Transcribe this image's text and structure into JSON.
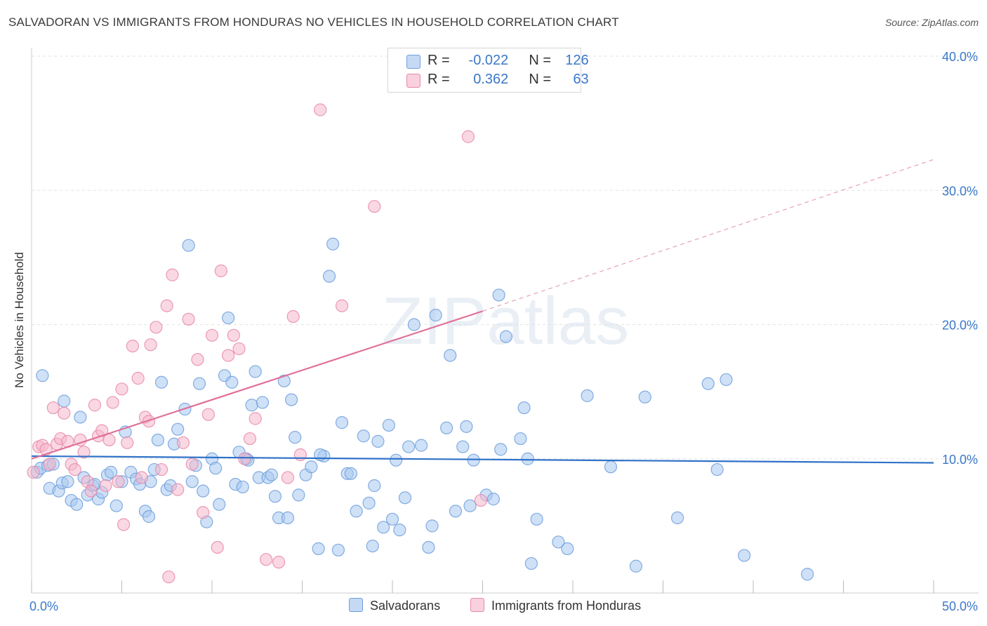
{
  "title": "SALVADORAN VS IMMIGRANTS FROM HONDURAS NO VEHICLES IN HOUSEHOLD CORRELATION CHART",
  "source": "Source: ZipAtlas.com",
  "watermark": "ZIPatlas",
  "legend_stats": [
    {
      "r_label": "R =",
      "r_value": "-0.022",
      "n_label": "N =",
      "n_value": "126",
      "color": "#a8c8f0"
    },
    {
      "r_label": "R =",
      "r_value": "0.362",
      "n_label": "N =",
      "n_value": "63",
      "color": "#f5b8cc"
    }
  ],
  "chart_data": {
    "type": "scatter",
    "title": "SALVADORAN VS IMMIGRANTS FROM HONDURAS NO VEHICLES IN HOUSEHOLD CORRELATION CHART",
    "xlabel": "",
    "ylabel": "No Vehicles in Household",
    "xlim": [
      0,
      50
    ],
    "ylim": [
      0,
      40
    ],
    "x_tick_labels": [
      "0.0%",
      "50.0%"
    ],
    "y_tick_labels": [
      "10.0%",
      "20.0%",
      "30.0%",
      "40.0%"
    ],
    "y_ticks": [
      10,
      20,
      30,
      40
    ],
    "grid": true,
    "legend_position": "bottom",
    "series": [
      {
        "name": "Salvadorans",
        "color": "#6f9fdc",
        "fill": "#a8c8f0",
        "trend": {
          "x0": 0,
          "y0": 10.2,
          "x1": 50,
          "y1": 9.7
        },
        "points": [
          [
            0.3,
            9.0
          ],
          [
            0.5,
            9.3
          ],
          [
            0.6,
            16.2
          ],
          [
            0.9,
            9.5
          ],
          [
            1.0,
            7.8
          ],
          [
            1.2,
            9.6
          ],
          [
            1.5,
            7.6
          ],
          [
            1.7,
            8.2
          ],
          [
            1.8,
            14.3
          ],
          [
            2.0,
            8.3
          ],
          [
            2.2,
            6.9
          ],
          [
            2.5,
            6.6
          ],
          [
            2.7,
            13.1
          ],
          [
            2.9,
            8.6
          ],
          [
            3.1,
            7.3
          ],
          [
            3.4,
            8.0
          ],
          [
            3.7,
            7.0
          ],
          [
            3.9,
            7.5
          ],
          [
            4.2,
            8.8
          ],
          [
            4.4,
            9.0
          ],
          [
            4.7,
            6.5
          ],
          [
            5.0,
            8.3
          ],
          [
            5.2,
            12.0
          ],
          [
            5.5,
            9.0
          ],
          [
            5.8,
            8.5
          ],
          [
            6.0,
            8.1
          ],
          [
            6.3,
            6.1
          ],
          [
            6.5,
            5.7
          ],
          [
            6.8,
            9.2
          ],
          [
            7.0,
            11.4
          ],
          [
            7.2,
            15.7
          ],
          [
            7.5,
            7.7
          ],
          [
            7.7,
            8.0
          ],
          [
            7.9,
            11.1
          ],
          [
            8.1,
            12.2
          ],
          [
            8.5,
            13.7
          ],
          [
            8.7,
            25.9
          ],
          [
            8.9,
            8.3
          ],
          [
            9.1,
            9.5
          ],
          [
            9.3,
            15.6
          ],
          [
            9.5,
            7.6
          ],
          [
            9.7,
            5.3
          ],
          [
            10.0,
            10.0
          ],
          [
            10.2,
            9.3
          ],
          [
            10.4,
            6.6
          ],
          [
            10.7,
            16.2
          ],
          [
            10.9,
            20.5
          ],
          [
            11.1,
            15.7
          ],
          [
            11.3,
            8.1
          ],
          [
            11.5,
            10.5
          ],
          [
            11.7,
            7.9
          ],
          [
            11.9,
            10.0
          ],
          [
            12.2,
            14.0
          ],
          [
            12.4,
            16.5
          ],
          [
            12.6,
            8.6
          ],
          [
            12.8,
            14.2
          ],
          [
            13.1,
            8.6
          ],
          [
            13.3,
            8.8
          ],
          [
            13.5,
            7.2
          ],
          [
            13.7,
            5.6
          ],
          [
            14.0,
            15.8
          ],
          [
            14.2,
            5.6
          ],
          [
            14.4,
            14.4
          ],
          [
            14.6,
            11.6
          ],
          [
            14.8,
            7.3
          ],
          [
            15.2,
            8.8
          ],
          [
            15.5,
            9.4
          ],
          [
            15.9,
            3.3
          ],
          [
            16.2,
            10.2
          ],
          [
            16.5,
            23.6
          ],
          [
            16.7,
            26.0
          ],
          [
            17.0,
            3.2
          ],
          [
            17.2,
            12.7
          ],
          [
            17.5,
            8.9
          ],
          [
            17.7,
            8.9
          ],
          [
            18.0,
            6.1
          ],
          [
            18.4,
            11.7
          ],
          [
            18.7,
            6.7
          ],
          [
            18.9,
            3.5
          ],
          [
            19.2,
            11.3
          ],
          [
            19.5,
            4.9
          ],
          [
            19.8,
            12.5
          ],
          [
            20.0,
            5.5
          ],
          [
            20.2,
            9.9
          ],
          [
            20.4,
            4.7
          ],
          [
            20.7,
            7.1
          ],
          [
            20.9,
            10.9
          ],
          [
            21.2,
            20.0
          ],
          [
            21.6,
            11.0
          ],
          [
            22.0,
            3.4
          ],
          [
            22.2,
            5.0
          ],
          [
            22.4,
            20.7
          ],
          [
            23.0,
            12.3
          ],
          [
            23.2,
            17.7
          ],
          [
            23.5,
            6.1
          ],
          [
            23.9,
            10.9
          ],
          [
            24.1,
            12.4
          ],
          [
            24.3,
            6.5
          ],
          [
            24.5,
            9.9
          ],
          [
            25.2,
            7.3
          ],
          [
            25.6,
            7.0
          ],
          [
            25.9,
            22.2
          ],
          [
            26.0,
            10.7
          ],
          [
            26.3,
            19.1
          ],
          [
            27.1,
            11.5
          ],
          [
            27.3,
            13.8
          ],
          [
            27.5,
            10.0
          ],
          [
            27.7,
            2.2
          ],
          [
            28.0,
            5.5
          ],
          [
            29.2,
            3.8
          ],
          [
            29.7,
            3.3
          ],
          [
            30.8,
            14.7
          ],
          [
            32.1,
            9.4
          ],
          [
            33.5,
            2.0
          ],
          [
            34.0,
            14.6
          ],
          [
            35.8,
            5.6
          ],
          [
            37.5,
            15.6
          ],
          [
            38.0,
            9.2
          ],
          [
            38.5,
            15.9
          ],
          [
            39.5,
            2.8
          ],
          [
            43.0,
            1.4
          ],
          [
            3.5,
            8.1
          ],
          [
            6.6,
            8.3
          ],
          [
            12.0,
            9.9
          ],
          [
            16.0,
            10.3
          ],
          [
            19.0,
            8.0
          ]
        ]
      },
      {
        "name": "Immigrants from Honduras",
        "color": "#e88aa8",
        "fill": "#f5b8cc",
        "trend": {
          "x0": 0,
          "y0": 10.0,
          "x1": 25,
          "y1": 21.0
        },
        "trend_dashed": {
          "x0": 25,
          "y0": 21.0,
          "x1": 50,
          "y1": 32.3
        },
        "points": [
          [
            0.1,
            9.0
          ],
          [
            0.4,
            10.9
          ],
          [
            0.6,
            11.0
          ],
          [
            0.8,
            10.7
          ],
          [
            1.0,
            9.6
          ],
          [
            1.2,
            13.8
          ],
          [
            1.4,
            11.1
          ],
          [
            1.6,
            11.5
          ],
          [
            1.8,
            13.4
          ],
          [
            2.0,
            11.3
          ],
          [
            2.2,
            9.6
          ],
          [
            2.4,
            9.2
          ],
          [
            2.7,
            11.4
          ],
          [
            2.9,
            10.5
          ],
          [
            3.1,
            8.3
          ],
          [
            3.3,
            7.6
          ],
          [
            3.5,
            14.0
          ],
          [
            3.7,
            11.7
          ],
          [
            3.9,
            12.1
          ],
          [
            4.1,
            8.0
          ],
          [
            4.3,
            11.4
          ],
          [
            4.5,
            14.2
          ],
          [
            4.8,
            8.3
          ],
          [
            5.0,
            15.2
          ],
          [
            5.1,
            5.1
          ],
          [
            5.3,
            11.2
          ],
          [
            5.6,
            18.4
          ],
          [
            5.9,
            16.0
          ],
          [
            6.1,
            8.6
          ],
          [
            6.3,
            13.1
          ],
          [
            6.5,
            12.8
          ],
          [
            6.6,
            18.5
          ],
          [
            6.9,
            19.8
          ],
          [
            7.2,
            9.2
          ],
          [
            7.5,
            21.4
          ],
          [
            7.6,
            1.2
          ],
          [
            7.8,
            23.7
          ],
          [
            8.1,
            7.7
          ],
          [
            8.4,
            11.2
          ],
          [
            8.7,
            20.4
          ],
          [
            8.9,
            9.6
          ],
          [
            9.2,
            17.4
          ],
          [
            9.5,
            6.0
          ],
          [
            9.8,
            13.3
          ],
          [
            10.0,
            19.2
          ],
          [
            10.3,
            3.4
          ],
          [
            10.5,
            24.0
          ],
          [
            10.9,
            17.7
          ],
          [
            11.2,
            19.2
          ],
          [
            11.5,
            18.2
          ],
          [
            11.8,
            10.0
          ],
          [
            12.1,
            11.5
          ],
          [
            12.4,
            13.0
          ],
          [
            13.0,
            2.5
          ],
          [
            13.7,
            2.3
          ],
          [
            14.2,
            8.6
          ],
          [
            14.5,
            20.6
          ],
          [
            14.9,
            10.3
          ],
          [
            16.0,
            36.0
          ],
          [
            17.2,
            21.4
          ],
          [
            19.0,
            28.8
          ],
          [
            24.2,
            34.0
          ],
          [
            24.9,
            6.9
          ]
        ]
      }
    ]
  }
}
